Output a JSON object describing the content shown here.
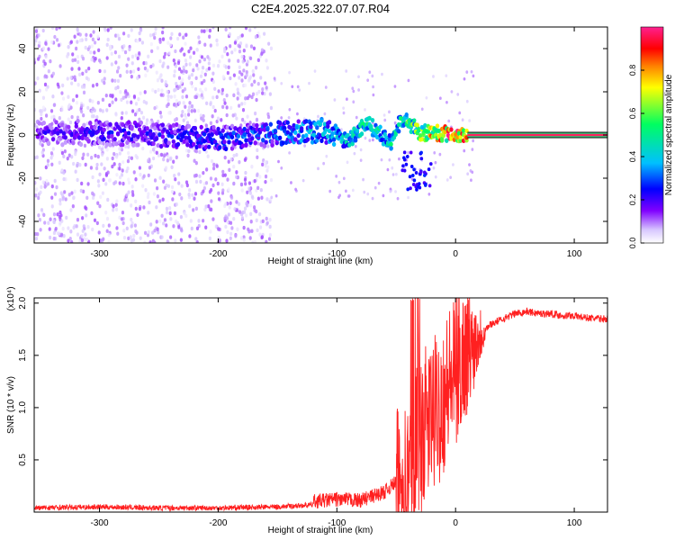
{
  "figure_title": "C2E4.2025.322.07.07.R04",
  "chart_data": [
    {
      "type": "heatmap",
      "xlabel": "Height of straight line (km)",
      "ylabel": "Frequency (Hz)",
      "xlim": [
        -355,
        128
      ],
      "ylim": [
        -50,
        50
      ],
      "x_ticks": [
        -300,
        -200,
        -100,
        0,
        100
      ],
      "y_ticks": [
        -40,
        -20,
        0,
        20,
        40
      ],
      "colorbar": {
        "label": "Normalized spectral amplitude",
        "range": [
          0,
          1
        ],
        "ticks": [
          "0.0",
          "0.2",
          "0.4",
          "0.6",
          "0.8"
        ],
        "colormap": [
          "#ffffff",
          "#d8c8ff",
          "#8000ff",
          "#0000ff",
          "#00c0ff",
          "#00ff60",
          "#ffff00",
          "#ff8000",
          "#ff0000",
          "#ff2090"
        ]
      },
      "trace": [
        {
          "x": -350,
          "f": 1,
          "amp": 0.2
        },
        {
          "x": -300,
          "f": 1,
          "amp": 0.25
        },
        {
          "x": -250,
          "f": 0,
          "amp": 0.25
        },
        {
          "x": -200,
          "f": -2,
          "amp": 0.3
        },
        {
          "x": -150,
          "f": 1,
          "amp": 0.35
        },
        {
          "x": -110,
          "f": 2,
          "amp": 0.45
        },
        {
          "x": -90,
          "f": -3,
          "amp": 0.45
        },
        {
          "x": -75,
          "f": 6,
          "amp": 0.5
        },
        {
          "x": -55,
          "f": -4,
          "amp": 0.5
        },
        {
          "x": -45,
          "f": 8,
          "amp": 0.5
        },
        {
          "x": -30,
          "f": 1,
          "amp": 0.7
        },
        {
          "x": -15,
          "f": 1,
          "amp": 0.85
        },
        {
          "x": 10,
          "f": 0,
          "amp": 1.0
        },
        {
          "x": 128,
          "f": 0,
          "amp": 1.0
        }
      ],
      "noise_region_x": [
        -355,
        -155
      ]
    },
    {
      "type": "line",
      "xlabel": "Height of straight line (km)",
      "ylabel": "SNR (10 * v/v)",
      "y_multiplier": "(x10⁴)",
      "xlim": [
        -355,
        128
      ],
      "ylim": [
        0,
        2.05
      ],
      "x_ticks": [
        -300,
        -200,
        -100,
        0,
        100
      ],
      "y_ticks": [
        "0.5",
        "1.0",
        "1.5",
        "2.0"
      ],
      "series": [
        {
          "color": "#ff2020",
          "x": [
            -355,
            -300,
            -250,
            -200,
            -150,
            -120,
            -100,
            -80,
            -60,
            -50,
            -40,
            -35,
            -30,
            -25,
            -20,
            -15,
            -10,
            -5,
            0,
            5,
            10,
            15,
            20,
            25,
            30,
            40,
            50,
            60,
            70,
            80,
            90,
            100,
            110,
            120,
            128
          ],
          "y": [
            0.03,
            0.04,
            0.03,
            0.03,
            0.04,
            0.06,
            0.08,
            0.07,
            0.15,
            0.25,
            0.35,
            0.6,
            0.7,
            0.85,
            0.9,
            1.0,
            1.1,
            1.25,
            1.35,
            1.45,
            1.55,
            1.6,
            1.7,
            1.75,
            1.8,
            1.85,
            1.9,
            1.92,
            1.9,
            1.9,
            1.88,
            1.88,
            1.86,
            1.85,
            1.85
          ]
        }
      ]
    }
  ]
}
